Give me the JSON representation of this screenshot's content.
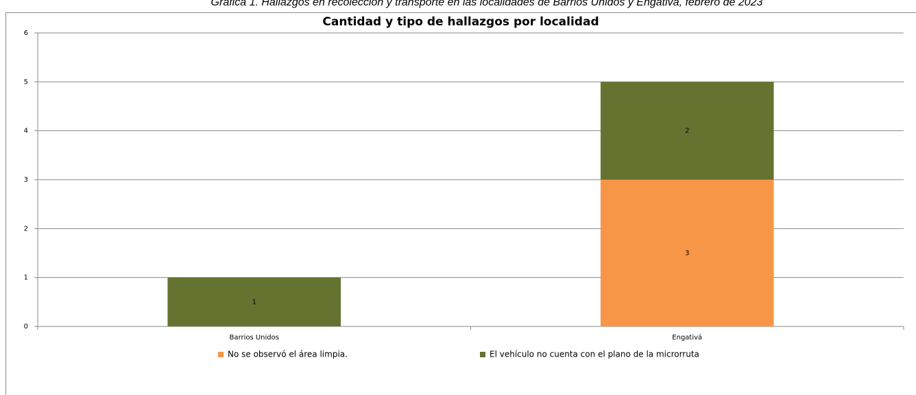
{
  "caption": "Gráfica 1. Hallazgos en recolección y transporte en las localidades de Barrios Unidos y Engativá, febrero de 2023",
  "chart_data": {
    "type": "stacked-bar",
    "title": "Cantidad y tipo de hallazgos por localidad",
    "categories": [
      "Barrios Unidos",
      "Engativá"
    ],
    "series": [
      {
        "name": "No se observó el área limpia.",
        "color": "#f79646",
        "values": [
          null,
          3
        ]
      },
      {
        "name": "El vehículo no cuenta con el plano de la microrruta",
        "color": "#647430",
        "values": [
          1,
          2
        ]
      }
    ],
    "ylim": [
      0,
      6
    ],
    "yticks": [
      0,
      1,
      2,
      3,
      4,
      5,
      6
    ],
    "grid": true,
    "legend": "bottom"
  }
}
